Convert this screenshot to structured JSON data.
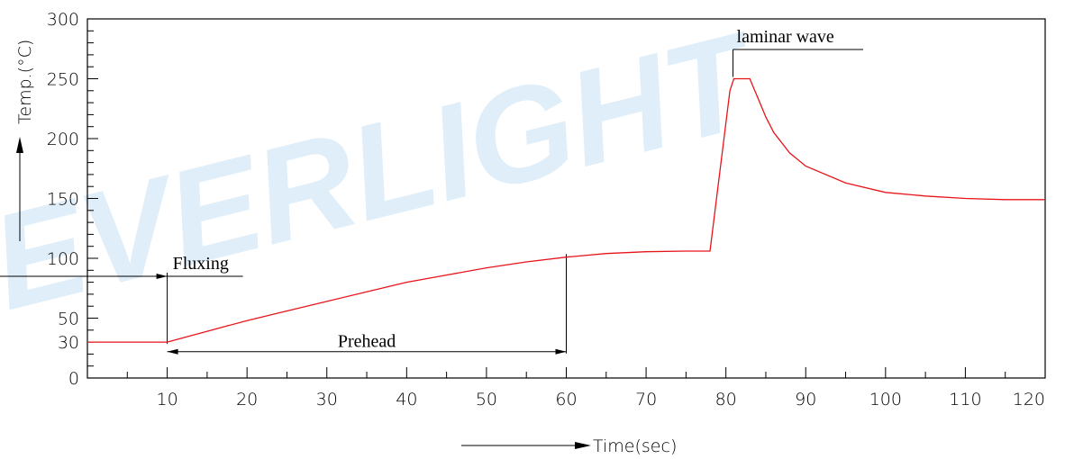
{
  "chart_data": {
    "type": "line",
    "title": "",
    "xlabel": "Time(sec)",
    "ylabel": "Temp.(°C)",
    "xlim": [
      0,
      120
    ],
    "ylim": [
      0,
      300
    ],
    "x_ticks": [
      10,
      20,
      30,
      40,
      50,
      60,
      70,
      80,
      90,
      100,
      110,
      120
    ],
    "y_ticks": [
      0,
      30,
      50,
      100,
      150,
      200,
      250,
      300
    ],
    "grid": false,
    "watermark": "EVERLIGHT",
    "colors": {
      "curve": "#e8141a",
      "watermark": "#dfeef8",
      "lines": "#000000"
    },
    "series": [
      {
        "x": [
          0,
          10,
          15,
          20,
          25,
          30,
          35,
          40,
          45,
          50,
          55,
          60,
          65,
          70,
          75,
          78,
          80.5,
          81,
          83,
          84,
          85,
          86,
          88,
          90,
          95,
          100,
          105,
          110,
          115,
          120
        ],
        "y": [
          30,
          30,
          39,
          48,
          56,
          64,
          72,
          80,
          86,
          92,
          97,
          101,
          104,
          105.5,
          106,
          106,
          240,
          250,
          250,
          234,
          218,
          205,
          188,
          177,
          163,
          155,
          152,
          150,
          149,
          149
        ]
      }
    ],
    "annotations": [
      {
        "text": "Fluxing",
        "type": "dimension-arrow",
        "from_x": 0,
        "to_x": 10,
        "at_y": 85
      },
      {
        "text": "Prehead",
        "type": "dimension-arrow",
        "from_x": 10,
        "to_x": 60,
        "at_y": 22
      },
      {
        "text": "laminar wave",
        "type": "leader",
        "x_start": 81,
        "x_end": 83,
        "at_y": 250
      }
    ]
  }
}
